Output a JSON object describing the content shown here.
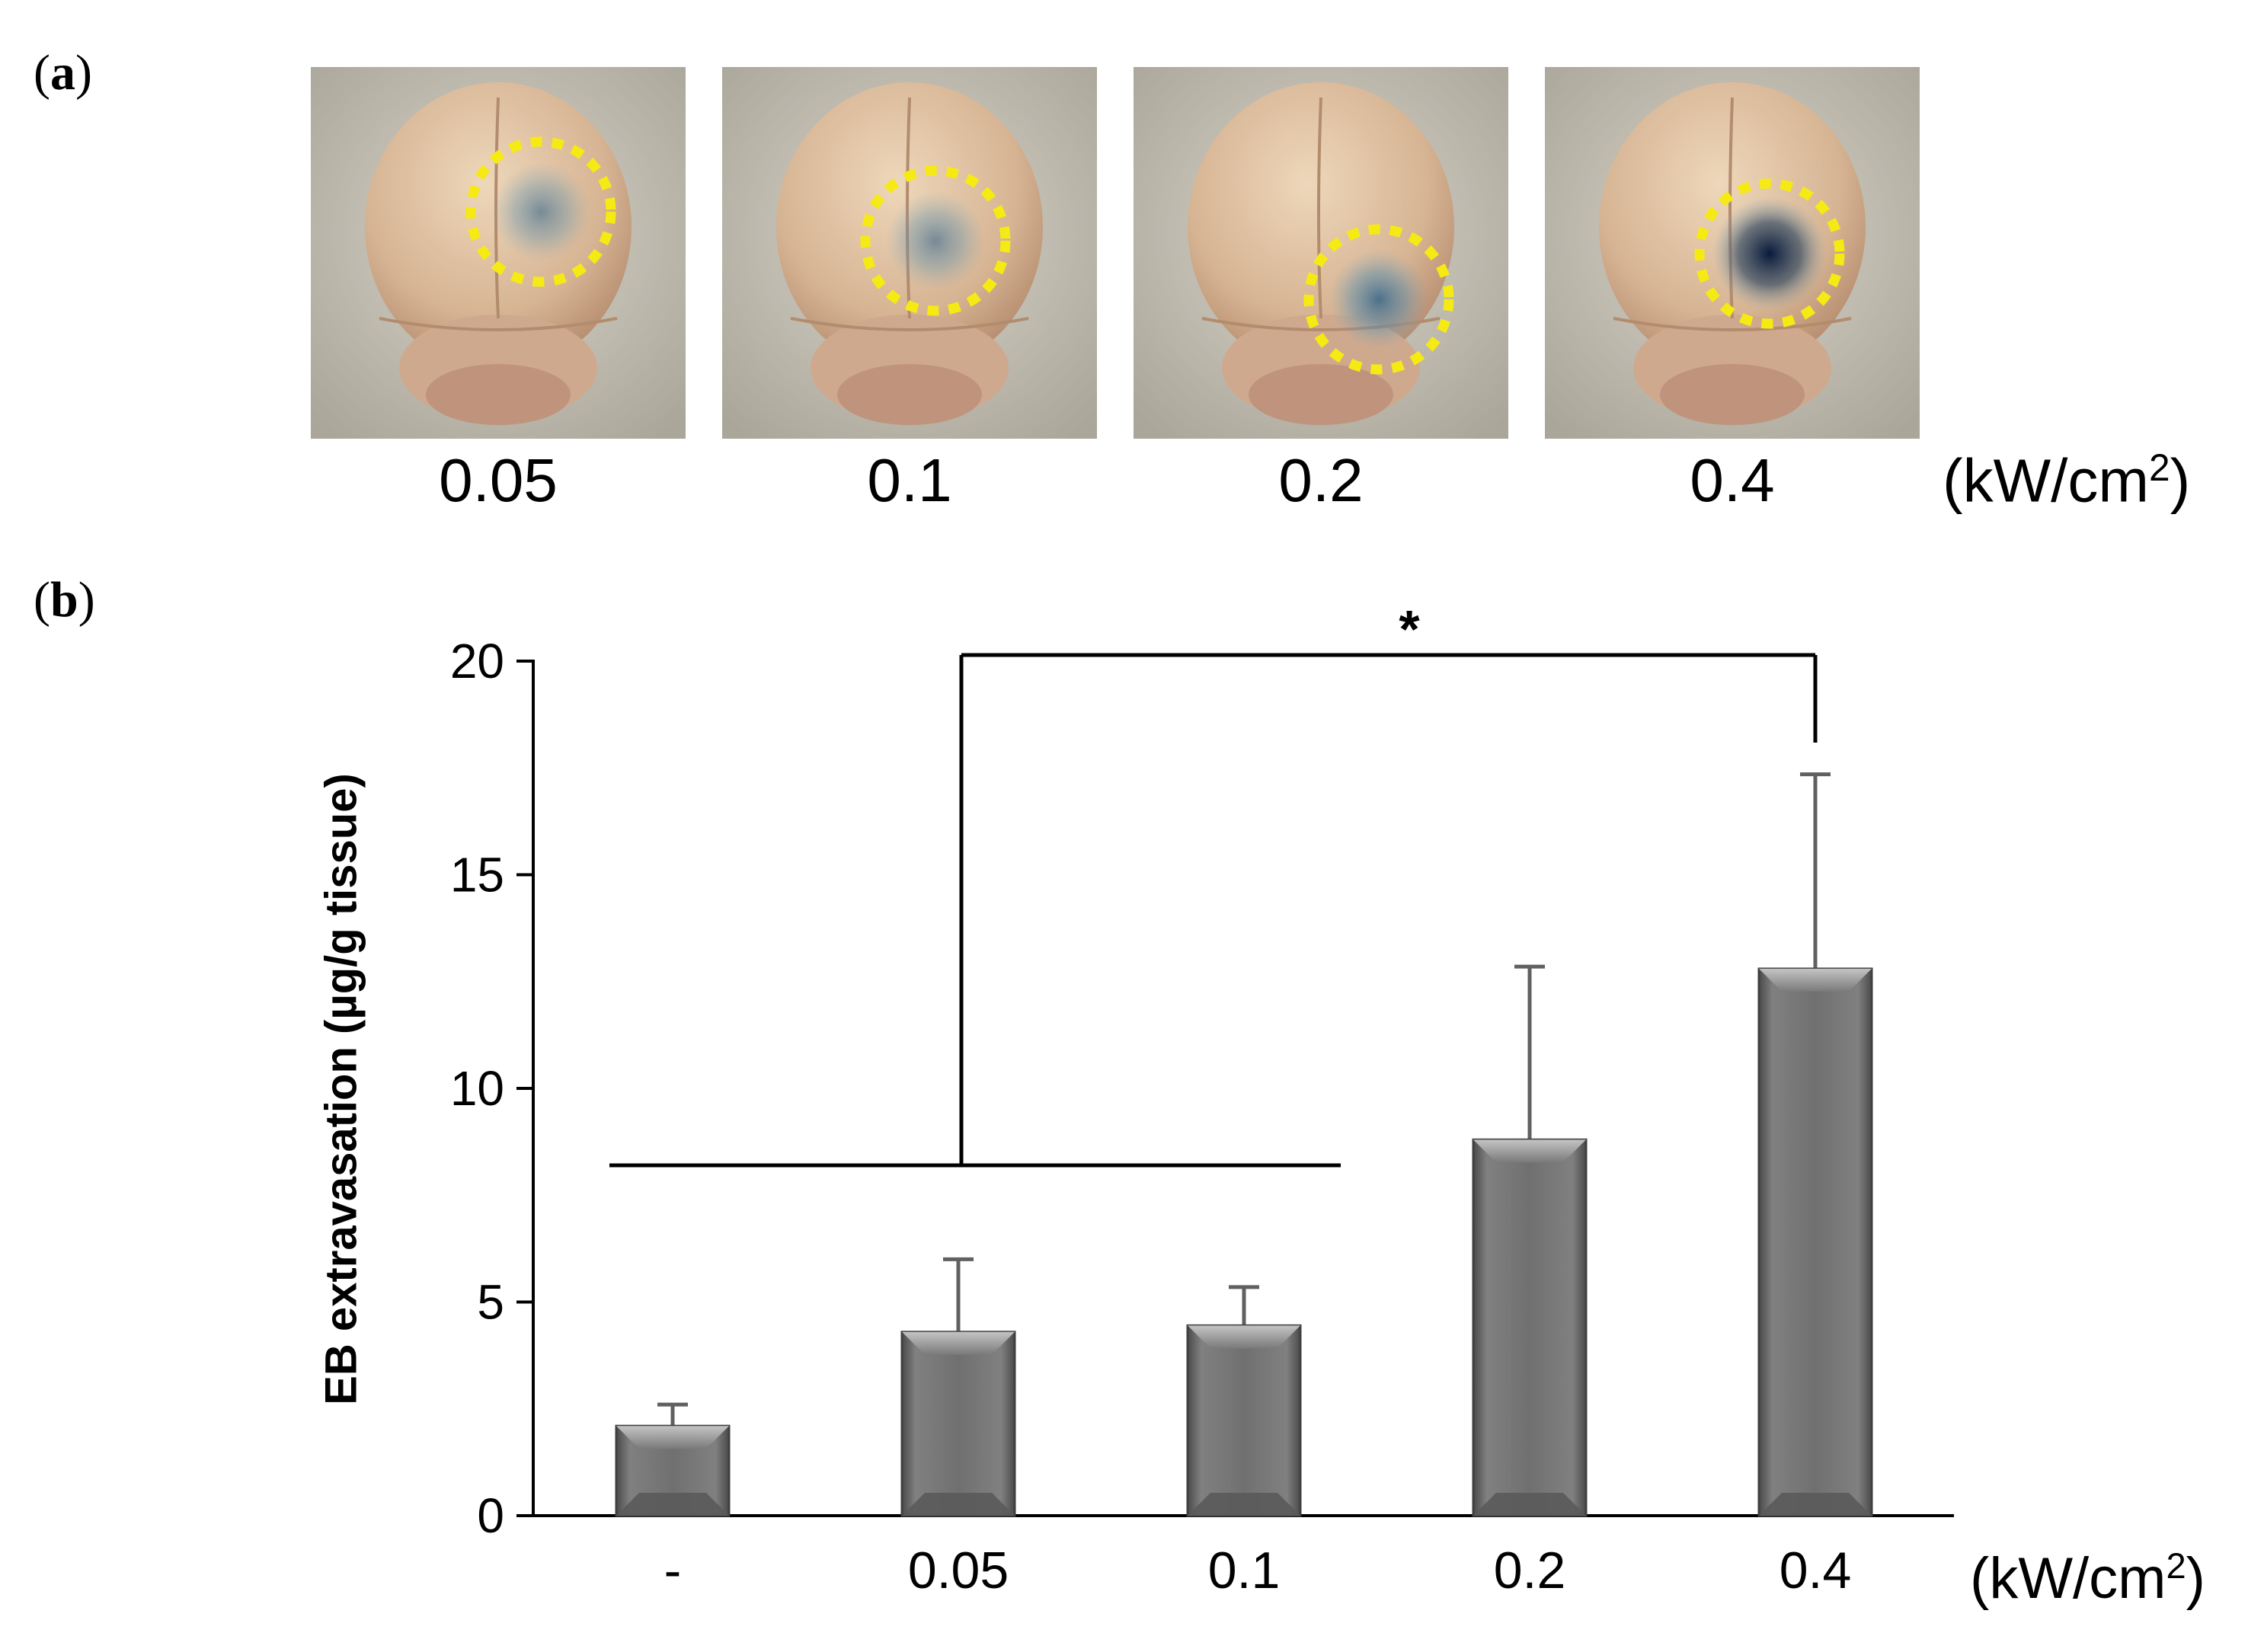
{
  "panel_a": {
    "label": "a",
    "photos": [
      {
        "power": "0.05",
        "stain": "light"
      },
      {
        "power": "0.1",
        "stain": "light"
      },
      {
        "power": "0.2",
        "stain": "medium"
      },
      {
        "power": "0.4",
        "stain": "dark"
      }
    ],
    "unit": "kW/cm",
    "unit_sup": "2",
    "circle_color": "#f5ea14"
  },
  "panel_b": {
    "label": "b",
    "unit": "kW/cm",
    "unit_sup": "2",
    "significance": "*"
  },
  "chart_data": {
    "type": "bar",
    "categories": [
      "-",
      "0.05",
      "0.1",
      "0.2",
      "0.4"
    ],
    "values": [
      2.1,
      4.3,
      4.45,
      8.8,
      12.8
    ],
    "error_upper": [
      2.6,
      6.0,
      5.35,
      12.85,
      17.35
    ],
    "ylabel": "EB extravasation (µg/g tissue)",
    "xlabel": "",
    "yticks": [
      0,
      5,
      10,
      15,
      20
    ],
    "ylim": [
      0,
      20
    ],
    "bar_color": "#707070",
    "significance": {
      "symbol": "*",
      "group": [
        "-",
        "0.05",
        "0.1"
      ],
      "versus": "0.4"
    }
  }
}
